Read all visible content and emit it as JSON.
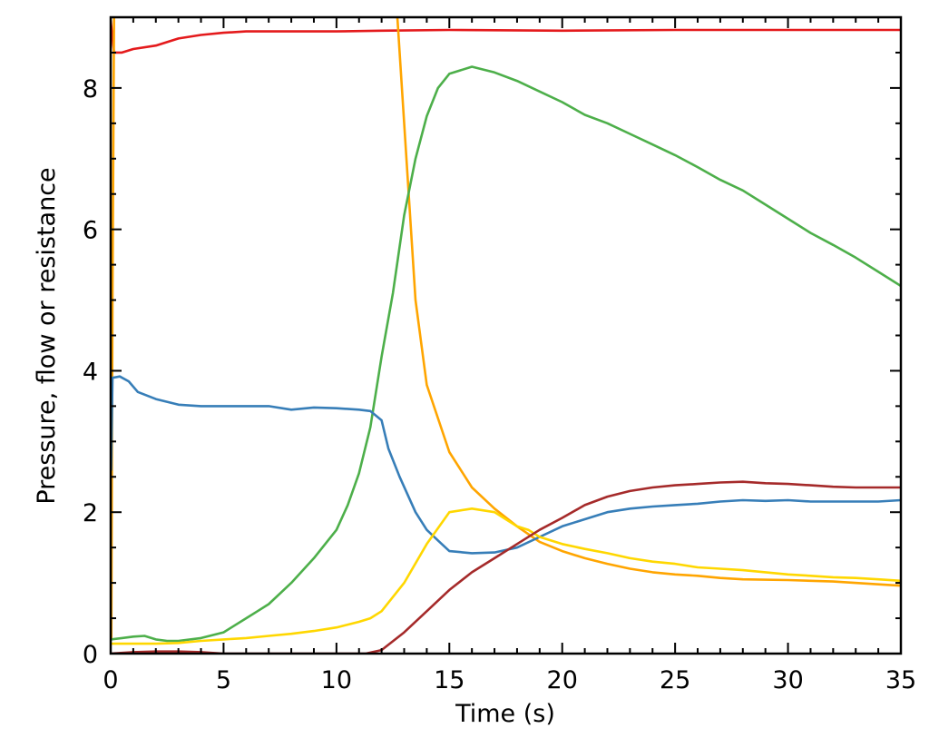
{
  "chart_data": {
    "type": "line",
    "title": "",
    "xlabel": "Time (s)",
    "ylabel": "Pressure, flow or resistance",
    "xlim": [
      0,
      35
    ],
    "ylim": [
      0,
      9
    ],
    "x_ticks": [
      "0",
      "5",
      "10",
      "15",
      "20",
      "25",
      "30",
      "35"
    ],
    "y_ticks": [
      "0",
      "2",
      "4",
      "6",
      "8"
    ],
    "grid": false,
    "legend": "none",
    "series": [
      {
        "color": "#e41a1c",
        "points": [
          [
            0,
            8.95
          ],
          [
            0.15,
            8.5
          ],
          [
            0.5,
            8.5
          ],
          [
            1,
            8.55
          ],
          [
            2,
            8.6
          ],
          [
            3,
            8.7
          ],
          [
            4,
            8.75
          ],
          [
            5,
            8.78
          ],
          [
            6,
            8.8
          ],
          [
            8,
            8.8
          ],
          [
            10,
            8.8
          ],
          [
            12,
            8.81
          ],
          [
            15,
            8.82
          ],
          [
            20,
            8.81
          ],
          [
            25,
            8.82
          ],
          [
            30,
            8.82
          ],
          [
            35,
            8.82
          ]
        ]
      },
      {
        "color": "#ffa500",
        "points": [
          [
            0.03,
            0.2
          ],
          [
            0.08,
            5.0
          ],
          [
            0.15,
            9.0
          ]
        ]
      },
      {
        "color": "#ffa500",
        "points": [
          [
            12.7,
            9.0
          ],
          [
            13.0,
            7.5
          ],
          [
            13.5,
            5.0
          ],
          [
            14.0,
            3.8
          ],
          [
            15.0,
            2.85
          ],
          [
            16.0,
            2.35
          ],
          [
            17.0,
            2.05
          ],
          [
            18.0,
            1.8
          ],
          [
            19.0,
            1.58
          ],
          [
            20.0,
            1.45
          ],
          [
            21.0,
            1.35
          ],
          [
            22.0,
            1.27
          ],
          [
            23.0,
            1.2
          ],
          [
            24.0,
            1.15
          ],
          [
            25.0,
            1.12
          ],
          [
            26.0,
            1.1
          ],
          [
            27.0,
            1.07
          ],
          [
            28.0,
            1.05
          ],
          [
            30.0,
            1.04
          ],
          [
            32.0,
            1.02
          ],
          [
            34.0,
            0.98
          ],
          [
            35.0,
            0.96
          ]
        ]
      },
      {
        "color": "#4daf4a",
        "points": [
          [
            0,
            0.2
          ],
          [
            0.5,
            0.22
          ],
          [
            1,
            0.24
          ],
          [
            1.5,
            0.25
          ],
          [
            2,
            0.2
          ],
          [
            2.5,
            0.18
          ],
          [
            3,
            0.18
          ],
          [
            4,
            0.22
          ],
          [
            5,
            0.3
          ],
          [
            5.5,
            0.4
          ],
          [
            6,
            0.5
          ],
          [
            6.5,
            0.6
          ],
          [
            7,
            0.7
          ],
          [
            8,
            1.0
          ],
          [
            9,
            1.35
          ],
          [
            10,
            1.75
          ],
          [
            10.5,
            2.1
          ],
          [
            11,
            2.55
          ],
          [
            11.5,
            3.2
          ],
          [
            12,
            4.2
          ],
          [
            12.5,
            5.1
          ],
          [
            13,
            6.2
          ],
          [
            13.5,
            7.0
          ],
          [
            14,
            7.6
          ],
          [
            14.5,
            8.0
          ],
          [
            15,
            8.2
          ],
          [
            16,
            8.3
          ],
          [
            17,
            8.22
          ],
          [
            18,
            8.1
          ],
          [
            19,
            7.95
          ],
          [
            20,
            7.8
          ],
          [
            21,
            7.62
          ],
          [
            22,
            7.5
          ],
          [
            23,
            7.35
          ],
          [
            24,
            7.2
          ],
          [
            25,
            7.05
          ],
          [
            26,
            6.88
          ],
          [
            27,
            6.7
          ],
          [
            28,
            6.55
          ],
          [
            29,
            6.35
          ],
          [
            30,
            6.15
          ],
          [
            31,
            5.95
          ],
          [
            32,
            5.78
          ],
          [
            33,
            5.6
          ],
          [
            34,
            5.4
          ],
          [
            35,
            5.2
          ]
        ]
      },
      {
        "color": "#377eb8",
        "points": [
          [
            0.02,
            2.6
          ],
          [
            0.08,
            3.9
          ],
          [
            0.4,
            3.92
          ],
          [
            0.8,
            3.85
          ],
          [
            1.2,
            3.7
          ],
          [
            2,
            3.6
          ],
          [
            3,
            3.52
          ],
          [
            4,
            3.5
          ],
          [
            5,
            3.5
          ],
          [
            6,
            3.5
          ],
          [
            7,
            3.5
          ],
          [
            8,
            3.45
          ],
          [
            9,
            3.48
          ],
          [
            10,
            3.47
          ],
          [
            11,
            3.45
          ],
          [
            11.5,
            3.43
          ],
          [
            12,
            3.3
          ],
          [
            12.3,
            2.9
          ],
          [
            12.8,
            2.5
          ],
          [
            13.5,
            2.0
          ],
          [
            14,
            1.75
          ],
          [
            14.5,
            1.6
          ],
          [
            15,
            1.45
          ],
          [
            16,
            1.42
          ],
          [
            17,
            1.43
          ],
          [
            18,
            1.5
          ],
          [
            19,
            1.65
          ],
          [
            20,
            1.8
          ],
          [
            21,
            1.9
          ],
          [
            22,
            2.0
          ],
          [
            23,
            2.05
          ],
          [
            24,
            2.08
          ],
          [
            25,
            2.1
          ],
          [
            26,
            2.12
          ],
          [
            27,
            2.15
          ],
          [
            28,
            2.17
          ],
          [
            29,
            2.16
          ],
          [
            30,
            2.17
          ],
          [
            31,
            2.15
          ],
          [
            32,
            2.15
          ],
          [
            33,
            2.15
          ],
          [
            34,
            2.15
          ],
          [
            35,
            2.17
          ]
        ]
      },
      {
        "color": "#ffd700",
        "points": [
          [
            0,
            0.14
          ],
          [
            1,
            0.14
          ],
          [
            2,
            0.14
          ],
          [
            3,
            0.15
          ],
          [
            4,
            0.18
          ],
          [
            5,
            0.2
          ],
          [
            6,
            0.22
          ],
          [
            7,
            0.25
          ],
          [
            8,
            0.28
          ],
          [
            9,
            0.32
          ],
          [
            10,
            0.37
          ],
          [
            11,
            0.45
          ],
          [
            11.5,
            0.5
          ],
          [
            12,
            0.6
          ],
          [
            13,
            1.0
          ],
          [
            14,
            1.55
          ],
          [
            15,
            2.0
          ],
          [
            16,
            2.05
          ],
          [
            17,
            2.0
          ],
          [
            17.5,
            1.9
          ],
          [
            18,
            1.8
          ],
          [
            18.5,
            1.75
          ],
          [
            19,
            1.65
          ],
          [
            20,
            1.55
          ],
          [
            21,
            1.48
          ],
          [
            22,
            1.42
          ],
          [
            23,
            1.35
          ],
          [
            24,
            1.3
          ],
          [
            25,
            1.27
          ],
          [
            26,
            1.22
          ],
          [
            27,
            1.2
          ],
          [
            28,
            1.18
          ],
          [
            29,
            1.15
          ],
          [
            30,
            1.12
          ],
          [
            31,
            1.1
          ],
          [
            32,
            1.08
          ],
          [
            33,
            1.07
          ],
          [
            34,
            1.05
          ],
          [
            35,
            1.03
          ]
        ]
      },
      {
        "color": "#a52a2a",
        "points": [
          [
            0,
            0.0
          ],
          [
            1,
            0.02
          ],
          [
            2,
            0.03
          ],
          [
            3,
            0.03
          ],
          [
            4,
            0.02
          ],
          [
            5,
            0.0
          ],
          [
            11.3,
            0.0
          ],
          [
            12,
            0.05
          ],
          [
            13,
            0.3
          ],
          [
            14,
            0.6
          ],
          [
            15,
            0.9
          ],
          [
            16,
            1.15
          ],
          [
            17,
            1.35
          ],
          [
            18,
            1.55
          ],
          [
            19,
            1.75
          ],
          [
            20,
            1.92
          ],
          [
            21,
            2.1
          ],
          [
            22,
            2.22
          ],
          [
            23,
            2.3
          ],
          [
            24,
            2.35
          ],
          [
            25,
            2.38
          ],
          [
            26,
            2.4
          ],
          [
            27,
            2.42
          ],
          [
            28,
            2.43
          ],
          [
            29,
            2.41
          ],
          [
            30,
            2.4
          ],
          [
            31,
            2.38
          ],
          [
            32,
            2.36
          ],
          [
            33,
            2.35
          ],
          [
            34,
            2.35
          ],
          [
            35,
            2.35
          ]
        ]
      }
    ]
  }
}
